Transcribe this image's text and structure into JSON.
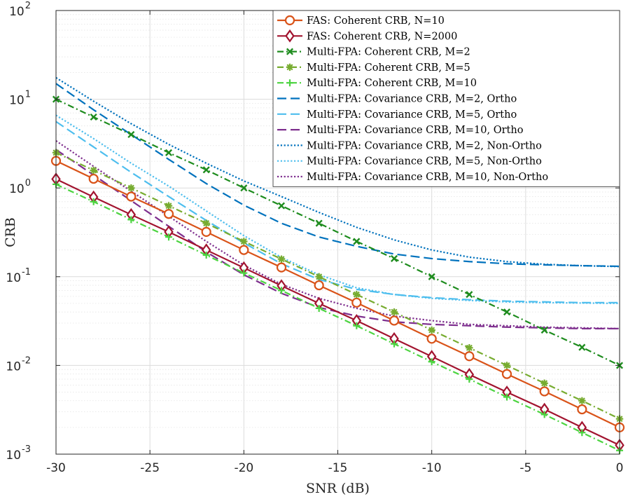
{
  "chart_data": {
    "type": "line",
    "xlabel": "SNR (dB)",
    "ylabel": "CRB",
    "xlim": [
      -30,
      0
    ],
    "ylim": [
      0.001,
      100
    ],
    "yscale": "log",
    "grid": true,
    "legend_position": "top-right",
    "xticks": [
      -30,
      -25,
      -20,
      -15,
      -10,
      -5,
      0
    ],
    "xtick_labels": [
      "-30",
      "-25",
      "-20",
      "-15",
      "-10",
      "-5",
      "0"
    ],
    "yticks": [
      {
        "value": 0.001,
        "base": "10",
        "exp": "-3"
      },
      {
        "value": 0.01,
        "base": "10",
        "exp": "-2"
      },
      {
        "value": 0.1,
        "base": "10",
        "exp": "-1"
      },
      {
        "value": 1,
        "base": "10",
        "exp": "0"
      },
      {
        "value": 10,
        "base": "10",
        "exp": "1"
      },
      {
        "value": 100,
        "base": "10",
        "exp": "2"
      }
    ],
    "x": [
      -30,
      -28,
      -26,
      -24,
      -22,
      -20,
      -18,
      -16,
      -14,
      -12,
      -10,
      -8,
      -6,
      -4,
      -2,
      0
    ],
    "series": [
      {
        "name": "FAS: Coherent CRB, N=10",
        "color": "#d95319",
        "dash": "solid",
        "marker": "circle",
        "values": [
          2.02,
          1.27,
          0.8,
          0.51,
          0.32,
          0.2,
          0.127,
          0.08,
          0.051,
          0.032,
          0.02,
          0.0127,
          0.008,
          0.0051,
          0.0032,
          0.002
        ]
      },
      {
        "name": "FAS: Coherent CRB, N=2000",
        "color": "#a2142f",
        "dash": "solid",
        "marker": "diamond",
        "values": [
          1.26,
          0.79,
          0.5,
          0.32,
          0.2,
          0.126,
          0.079,
          0.05,
          0.032,
          0.02,
          0.0126,
          0.0079,
          0.005,
          0.0032,
          0.002,
          0.00126
        ]
      },
      {
        "name": "Multi-FPA: Coherent CRB, M=2",
        "color": "#1e8c1e",
        "dash": "dashdot",
        "marker": "x",
        "values": [
          10.0,
          6.3,
          4.0,
          2.5,
          1.6,
          1.0,
          0.63,
          0.4,
          0.25,
          0.16,
          0.1,
          0.063,
          0.04,
          0.025,
          0.016,
          0.01
        ]
      },
      {
        "name": "Multi-FPA: Coherent CRB, M=5",
        "color": "#77ac30",
        "dash": "dashdot",
        "marker": "star",
        "values": [
          2.5,
          1.58,
          1.0,
          0.63,
          0.4,
          0.25,
          0.158,
          0.1,
          0.063,
          0.04,
          0.025,
          0.0158,
          0.01,
          0.0063,
          0.004,
          0.0025
        ]
      },
      {
        "name": "Multi-FPA: Coherent CRB, M=10",
        "color": "#4cd440",
        "dash": "dashdot",
        "marker": "plus",
        "values": [
          1.1,
          0.7,
          0.44,
          0.28,
          0.175,
          0.11,
          0.07,
          0.044,
          0.028,
          0.0175,
          0.011,
          0.007,
          0.0044,
          0.0028,
          0.00175,
          0.0011
        ]
      },
      {
        "name": "Multi-FPA: Covariance CRB, M=2, Ortho",
        "color": "#0072bd",
        "dash": "dashed",
        "marker": "none",
        "values": [
          15.0,
          7.6,
          4.0,
          2.1,
          1.12,
          0.64,
          0.4,
          0.28,
          0.22,
          0.18,
          0.16,
          0.148,
          0.14,
          0.136,
          0.133,
          0.131
        ]
      },
      {
        "name": "Multi-FPA: Covariance CRB, M=5, Ortho",
        "color": "#4dbeee",
        "dash": "dashed",
        "marker": "none",
        "values": [
          5.6,
          2.9,
          1.5,
          0.8,
          0.43,
          0.24,
          0.14,
          0.093,
          0.072,
          0.063,
          0.058,
          0.055,
          0.053,
          0.052,
          0.051,
          0.051
        ]
      },
      {
        "name": "Multi-FPA: Covariance CRB, M=10, Ortho",
        "color": "#7e2f8e",
        "dash": "dashed",
        "marker": "none",
        "values": [
          2.7,
          1.4,
          0.72,
          0.37,
          0.19,
          0.105,
          0.065,
          0.045,
          0.036,
          0.031,
          0.029,
          0.028,
          0.027,
          0.0265,
          0.026,
          0.026
        ]
      },
      {
        "name": "Multi-FPA: Covariance CRB, M=2, Non-Ortho",
        "color": "#0072bd",
        "dash": "dotted",
        "marker": "none",
        "values": [
          17.5,
          9.5,
          5.3,
          3.1,
          1.9,
          1.2,
          0.8,
          0.53,
          0.36,
          0.26,
          0.2,
          0.166,
          0.148,
          0.138,
          0.133,
          0.13
        ]
      },
      {
        "name": "Multi-FPA: Covariance CRB, M=5, Non-Ortho",
        "color": "#4dbeee",
        "dash": "dotted",
        "marker": "none",
        "values": [
          6.6,
          3.6,
          1.9,
          1.05,
          0.55,
          0.29,
          0.165,
          0.105,
          0.075,
          0.063,
          0.057,
          0.054,
          0.052,
          0.051,
          0.0505,
          0.05
        ]
      },
      {
        "name": "Multi-FPA: Covariance CRB, M=10, Non-Ortho",
        "color": "#7e2f8e",
        "dash": "dotted",
        "marker": "none",
        "values": [
          3.4,
          1.75,
          0.92,
          0.48,
          0.25,
          0.135,
          0.082,
          0.057,
          0.044,
          0.036,
          0.032,
          0.029,
          0.028,
          0.027,
          0.0265,
          0.026
        ]
      }
    ]
  }
}
